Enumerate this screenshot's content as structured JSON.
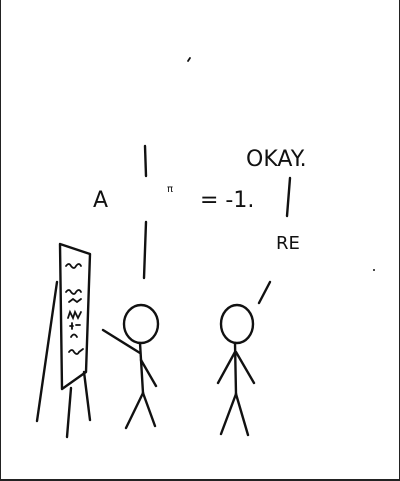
{
  "comic": {
    "speech_left_a": "A",
    "speech_left_pi": "π",
    "speech_left_eq": "= -1.",
    "speech_right_okay": "OKAY.",
    "speech_right_re": "RE"
  },
  "colors": {
    "ink": "#111111",
    "background": "#ffffff"
  }
}
